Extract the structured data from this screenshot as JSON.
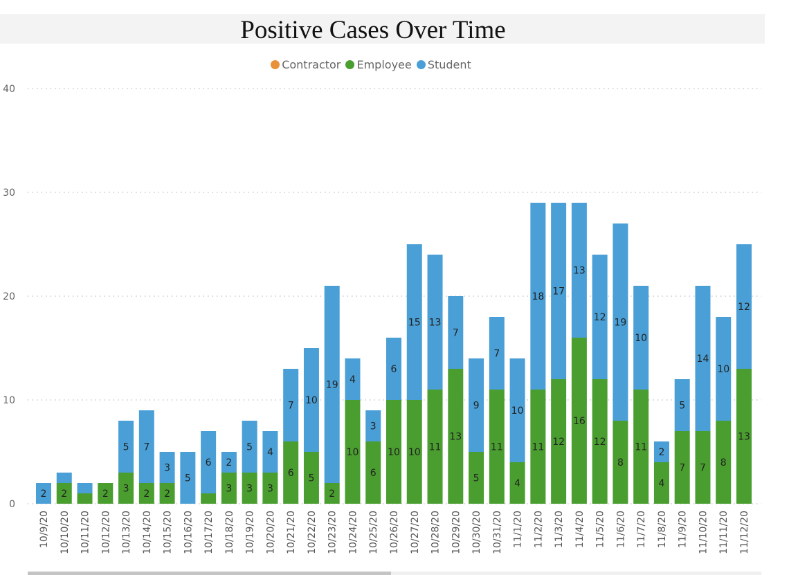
{
  "chart_data": {
    "type": "bar",
    "stacked": true,
    "title": "Positive Cases Over Time",
    "xlabel": "",
    "ylabel": "",
    "ylim": [
      0,
      40
    ],
    "yticks": [
      0,
      10,
      20,
      30,
      40
    ],
    "grid": true,
    "legend_position": "top-center",
    "categories": [
      "10/9/20",
      "10/10/20",
      "10/11/20",
      "10/12/20",
      "10/13/20",
      "10/14/20",
      "10/15/20",
      "10/16/20",
      "10/17/20",
      "10/18/20",
      "10/19/20",
      "10/20/20",
      "10/21/20",
      "10/22/20",
      "10/23/20",
      "10/24/20",
      "10/25/20",
      "10/26/20",
      "10/27/20",
      "10/28/20",
      "10/29/20",
      "10/30/20",
      "10/31/20",
      "11/1/20",
      "11/2/20",
      "11/3/20",
      "11/4/20",
      "11/5/20",
      "11/6/20",
      "11/7/20",
      "11/8/20",
      "11/9/20",
      "11/10/20",
      "11/11/20",
      "11/12/20"
    ],
    "series": [
      {
        "name": "Contractor",
        "color": "#e8913a",
        "values": [
          0,
          0,
          0,
          0,
          0,
          0,
          0,
          0,
          0,
          0,
          0,
          0,
          0,
          0,
          0,
          0,
          0,
          0,
          0,
          0,
          0,
          0,
          0,
          0,
          0,
          0,
          0,
          0,
          0,
          0,
          0,
          0,
          0,
          0,
          0
        ]
      },
      {
        "name": "Employee",
        "color": "#4a9e2f",
        "values": [
          0,
          2,
          1,
          2,
          3,
          2,
          2,
          0,
          1,
          3,
          3,
          3,
          6,
          5,
          2,
          10,
          6,
          10,
          10,
          11,
          13,
          5,
          11,
          4,
          11,
          12,
          16,
          12,
          8,
          11,
          4,
          7,
          7,
          8,
          13
        ]
      },
      {
        "name": "Student",
        "color": "#4a9fd6",
        "values": [
          2,
          1,
          1,
          0,
          5,
          7,
          3,
          5,
          6,
          2,
          5,
          4,
          7,
          10,
          19,
          4,
          3,
          6,
          15,
          13,
          7,
          9,
          7,
          10,
          18,
          17,
          13,
          12,
          19,
          10,
          2,
          5,
          14,
          10,
          12
        ]
      }
    ]
  }
}
